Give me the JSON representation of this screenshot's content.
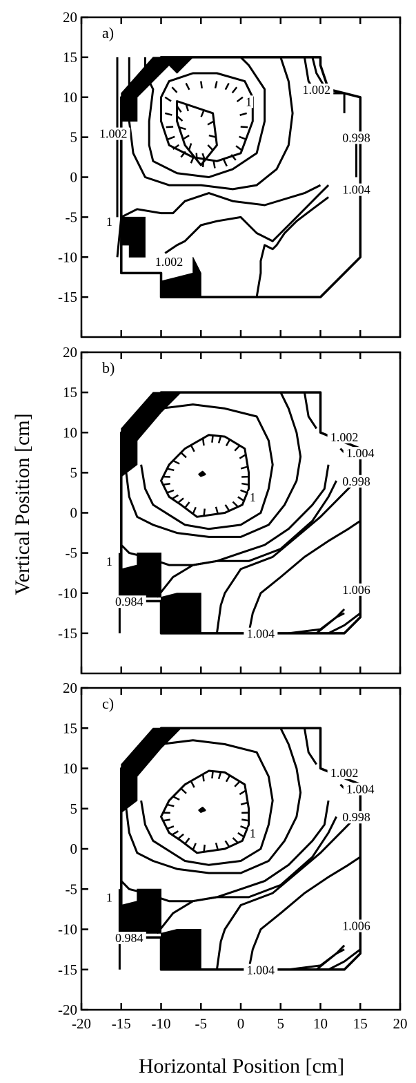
{
  "chart_data": [
    {
      "type": "contour",
      "panel_label": "a)",
      "xlim": [
        -20,
        20
      ],
      "ylim": [
        -20,
        20
      ],
      "yticks": [
        20,
        15,
        10,
        5,
        0,
        -5,
        -10,
        -15
      ],
      "contour_labels": [
        {
          "text": "1.002",
          "x": 9.5,
          "y": 10.5
        },
        {
          "text": "1",
          "x": 1,
          "y": 9
        },
        {
          "text": "1.002",
          "x": -16,
          "y": 5
        },
        {
          "text": "0.998",
          "x": 14.5,
          "y": 4.5
        },
        {
          "text": "1.004",
          "x": 14.5,
          "y": -2
        },
        {
          "text": "1",
          "x": -16.5,
          "y": -6
        },
        {
          "text": "1.002",
          "x": -9,
          "y": -11
        }
      ]
    },
    {
      "type": "contour",
      "panel_label": "b)",
      "xlim": [
        -20,
        20
      ],
      "ylim": [
        -20,
        20
      ],
      "yticks": [
        20,
        15,
        10,
        5,
        0,
        -5,
        -10,
        -15
      ],
      "contour_labels": [
        {
          "text": "1.002",
          "x": 13,
          "y": 9
        },
        {
          "text": "1.004",
          "x": 15,
          "y": 7
        },
        {
          "text": "0.998",
          "x": 14.5,
          "y": 3.5
        },
        {
          "text": "1",
          "x": 1.5,
          "y": 1.5
        },
        {
          "text": "1",
          "x": -16.5,
          "y": -6.5
        },
        {
          "text": "0.984",
          "x": -14,
          "y": -11.5
        },
        {
          "text": "1.006",
          "x": 14.5,
          "y": -10
        },
        {
          "text": "1.004",
          "x": 2.5,
          "y": -15.5
        }
      ]
    },
    {
      "type": "contour",
      "panel_label": "c)",
      "xlim": [
        -20,
        20
      ],
      "ylim": [
        -20,
        20
      ],
      "yticks": [
        20,
        15,
        10,
        5,
        0,
        -5,
        -10,
        -15,
        -20
      ],
      "xticks": [
        -20,
        -15,
        -10,
        -5,
        0,
        5,
        10,
        15,
        20
      ],
      "contour_labels": [
        {
          "text": "1.002",
          "x": 13,
          "y": 9
        },
        {
          "text": "1.004",
          "x": 15,
          "y": 7
        },
        {
          "text": "0.998",
          "x": 14.5,
          "y": 3.5
        },
        {
          "text": "1",
          "x": 1.5,
          "y": 1.5
        },
        {
          "text": "1",
          "x": -16.5,
          "y": -6.5
        },
        {
          "text": "0.984",
          "x": -14,
          "y": -11.5
        },
        {
          "text": "1.006",
          "x": 14.5,
          "y": -10
        },
        {
          "text": "1.004",
          "x": 2.5,
          "y": -15.5
        }
      ]
    }
  ],
  "xlabel": "Horizontal Position [cm]",
  "ylabel": "Vertical Position [cm]"
}
